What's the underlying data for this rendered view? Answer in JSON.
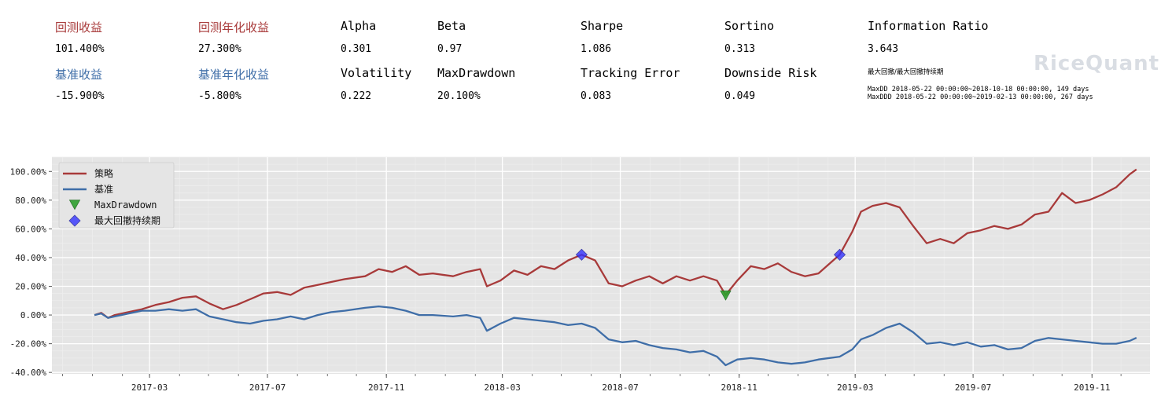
{
  "summary": {
    "row1": [
      {
        "label": "回测收益",
        "value": "101.400%",
        "color": "red"
      },
      {
        "label": "回测年化收益",
        "value": "27.300%",
        "color": "red"
      },
      {
        "label": "Alpha",
        "value": "0.301",
        "color": "black"
      },
      {
        "label": "Beta",
        "value": "0.97",
        "color": "black"
      },
      {
        "label": "Sharpe",
        "value": "1.086",
        "color": "black"
      },
      {
        "label": "Sortino",
        "value": "0.313",
        "color": "black"
      },
      {
        "label": "Information Ratio",
        "value": "3.643",
        "color": "black"
      }
    ],
    "row2": [
      {
        "label": "基准收益",
        "value": "-15.900%",
        "color": "blue"
      },
      {
        "label": "基准年化收益",
        "value": "-5.800%",
        "color": "blue"
      },
      {
        "label": "Volatility",
        "value": "0.222",
        "color": "black"
      },
      {
        "label": "MaxDrawdown",
        "value": "20.100%",
        "color": "black"
      },
      {
        "label": "Tracking Error",
        "value": "0.083",
        "color": "black"
      },
      {
        "label": "Downside Risk",
        "value": "0.049",
        "color": "black"
      }
    ],
    "max_dd_title": "最大回撤/最大回撤持续期",
    "max_dd_line1": "MaxDD  2018-05-22 00:00:00~2018-10-18 00:00:00, 149 days",
    "max_dd_line2": "MaxDDD 2018-05-22 00:00:00~2019-02-13 00:00:00, 267 days",
    "logo_text": "RiceQuant"
  },
  "colors": {
    "strategy": "#a83a3a",
    "benchmark": "#3f6ea8",
    "maxdd_marker": "#2ca02c",
    "maxddd_marker": "#3333ff",
    "plot_bg": "#e5e5e5"
  },
  "chart_data": {
    "type": "line",
    "x_ticks": [
      "2017-03",
      "2017-07",
      "2017-11",
      "2018-03",
      "2018-07",
      "2018-11",
      "2019-03",
      "2019-07",
      "2019-11"
    ],
    "x_tick_dates": [
      "2017-03-01",
      "2017-07-01",
      "2017-11-01",
      "2018-03-01",
      "2018-07-01",
      "2018-11-01",
      "2019-03-01",
      "2019-07-01",
      "2019-11-01"
    ],
    "xlim": [
      "2016-11-20",
      "2019-12-31"
    ],
    "y_ticks": [
      "100.00%",
      "80.00%",
      "60.00%",
      "40.00%",
      "20.00%",
      "0.00%",
      "-20.00%",
      "-40.00%"
    ],
    "y_tick_values": [
      100,
      80,
      60,
      40,
      20,
      0,
      -20,
      -40
    ],
    "ylim": [
      -41,
      110
    ],
    "grid": true,
    "legend_position": "top-left",
    "series": [
      {
        "name": "策略",
        "points": [
          [
            "2017-01-03",
            0
          ],
          [
            "2017-01-10",
            1.5
          ],
          [
            "2017-01-17",
            -2
          ],
          [
            "2017-01-24",
            0
          ],
          [
            "2017-02-07",
            2
          ],
          [
            "2017-02-21",
            4
          ],
          [
            "2017-03-07",
            7
          ],
          [
            "2017-03-21",
            9
          ],
          [
            "2017-04-04",
            12
          ],
          [
            "2017-04-18",
            13
          ],
          [
            "2017-05-02",
            8
          ],
          [
            "2017-05-16",
            4
          ],
          [
            "2017-05-30",
            7
          ],
          [
            "2017-06-13",
            11
          ],
          [
            "2017-06-27",
            15
          ],
          [
            "2017-07-11",
            16
          ],
          [
            "2017-07-25",
            14
          ],
          [
            "2017-08-08",
            19
          ],
          [
            "2017-08-22",
            21
          ],
          [
            "2017-09-05",
            23
          ],
          [
            "2017-09-19",
            25
          ],
          [
            "2017-10-10",
            27
          ],
          [
            "2017-10-24",
            32
          ],
          [
            "2017-11-07",
            30
          ],
          [
            "2017-11-21",
            34
          ],
          [
            "2017-12-05",
            28
          ],
          [
            "2017-12-19",
            29
          ],
          [
            "2018-01-09",
            27
          ],
          [
            "2018-01-23",
            30
          ],
          [
            "2018-02-06",
            32
          ],
          [
            "2018-02-13",
            20
          ],
          [
            "2018-02-27",
            24
          ],
          [
            "2018-03-13",
            31
          ],
          [
            "2018-03-27",
            28
          ],
          [
            "2018-04-10",
            34
          ],
          [
            "2018-04-24",
            32
          ],
          [
            "2018-05-08",
            38
          ],
          [
            "2018-05-22",
            42
          ],
          [
            "2018-06-05",
            38
          ],
          [
            "2018-06-19",
            22
          ],
          [
            "2018-07-03",
            20
          ],
          [
            "2018-07-17",
            24
          ],
          [
            "2018-07-31",
            27
          ],
          [
            "2018-08-14",
            22
          ],
          [
            "2018-08-28",
            27
          ],
          [
            "2018-09-11",
            24
          ],
          [
            "2018-09-25",
            27
          ],
          [
            "2018-10-09",
            24
          ],
          [
            "2018-10-18",
            14
          ],
          [
            "2018-10-30",
            24
          ],
          [
            "2018-11-13",
            34
          ],
          [
            "2018-11-27",
            32
          ],
          [
            "2018-12-11",
            36
          ],
          [
            "2018-12-25",
            30
          ],
          [
            "2019-01-08",
            27
          ],
          [
            "2019-01-22",
            29
          ],
          [
            "2019-02-13",
            42
          ],
          [
            "2019-02-26",
            58
          ],
          [
            "2019-03-07",
            72
          ],
          [
            "2019-03-19",
            76
          ],
          [
            "2019-04-02",
            78
          ],
          [
            "2019-04-16",
            75
          ],
          [
            "2019-04-30",
            62
          ],
          [
            "2019-05-14",
            50
          ],
          [
            "2019-05-28",
            53
          ],
          [
            "2019-06-11",
            50
          ],
          [
            "2019-06-25",
            57
          ],
          [
            "2019-07-09",
            59
          ],
          [
            "2019-07-23",
            62
          ],
          [
            "2019-08-06",
            60
          ],
          [
            "2019-08-20",
            63
          ],
          [
            "2019-09-03",
            70
          ],
          [
            "2019-09-17",
            72
          ],
          [
            "2019-10-01",
            85
          ],
          [
            "2019-10-15",
            78
          ],
          [
            "2019-10-29",
            80
          ],
          [
            "2019-11-12",
            84
          ],
          [
            "2019-11-26",
            89
          ],
          [
            "2019-12-10",
            98
          ],
          [
            "2019-12-17",
            101.4
          ]
        ]
      },
      {
        "name": "基准",
        "points": [
          [
            "2017-01-03",
            0
          ],
          [
            "2017-01-10",
            1
          ],
          [
            "2017-01-17",
            -2
          ],
          [
            "2017-01-24",
            -1
          ],
          [
            "2017-02-07",
            1
          ],
          [
            "2017-02-21",
            3
          ],
          [
            "2017-03-07",
            3
          ],
          [
            "2017-03-21",
            4
          ],
          [
            "2017-04-04",
            3
          ],
          [
            "2017-04-18",
            4
          ],
          [
            "2017-05-02",
            -1
          ],
          [
            "2017-05-16",
            -3
          ],
          [
            "2017-05-30",
            -5
          ],
          [
            "2017-06-13",
            -6
          ],
          [
            "2017-06-27",
            -4
          ],
          [
            "2017-07-11",
            -3
          ],
          [
            "2017-07-25",
            -1
          ],
          [
            "2017-08-08",
            -3
          ],
          [
            "2017-08-22",
            0
          ],
          [
            "2017-09-05",
            2
          ],
          [
            "2017-09-19",
            3
          ],
          [
            "2017-10-10",
            5
          ],
          [
            "2017-10-24",
            6
          ],
          [
            "2017-11-07",
            5
          ],
          [
            "2017-11-21",
            3
          ],
          [
            "2017-12-05",
            0
          ],
          [
            "2017-12-19",
            0
          ],
          [
            "2018-01-09",
            -1
          ],
          [
            "2018-01-23",
            0
          ],
          [
            "2018-02-06",
            -2
          ],
          [
            "2018-02-13",
            -11
          ],
          [
            "2018-02-27",
            -6
          ],
          [
            "2018-03-13",
            -2
          ],
          [
            "2018-03-27",
            -3
          ],
          [
            "2018-04-10",
            -4
          ],
          [
            "2018-04-24",
            -5
          ],
          [
            "2018-05-08",
            -7
          ],
          [
            "2018-05-22",
            -6
          ],
          [
            "2018-06-05",
            -9
          ],
          [
            "2018-06-19",
            -17
          ],
          [
            "2018-07-03",
            -19
          ],
          [
            "2018-07-17",
            -18
          ],
          [
            "2018-07-31",
            -21
          ],
          [
            "2018-08-14",
            -23
          ],
          [
            "2018-08-28",
            -24
          ],
          [
            "2018-09-11",
            -26
          ],
          [
            "2018-09-25",
            -25
          ],
          [
            "2018-10-09",
            -29
          ],
          [
            "2018-10-18",
            -35
          ],
          [
            "2018-10-30",
            -31
          ],
          [
            "2018-11-13",
            -30
          ],
          [
            "2018-11-27",
            -31
          ],
          [
            "2018-12-11",
            -33
          ],
          [
            "2018-12-25",
            -34
          ],
          [
            "2019-01-08",
            -33
          ],
          [
            "2019-01-22",
            -31
          ],
          [
            "2019-02-13",
            -29
          ],
          [
            "2019-02-26",
            -24
          ],
          [
            "2019-03-07",
            -17
          ],
          [
            "2019-03-19",
            -14
          ],
          [
            "2019-04-02",
            -9
          ],
          [
            "2019-04-16",
            -6
          ],
          [
            "2019-04-30",
            -12
          ],
          [
            "2019-05-14",
            -20
          ],
          [
            "2019-05-28",
            -19
          ],
          [
            "2019-06-11",
            -21
          ],
          [
            "2019-06-25",
            -19
          ],
          [
            "2019-07-09",
            -22
          ],
          [
            "2019-07-23",
            -21
          ],
          [
            "2019-08-06",
            -24
          ],
          [
            "2019-08-20",
            -23
          ],
          [
            "2019-09-03",
            -18
          ],
          [
            "2019-09-17",
            -16
          ],
          [
            "2019-10-01",
            -17
          ],
          [
            "2019-10-15",
            -18
          ],
          [
            "2019-10-29",
            -19
          ],
          [
            "2019-11-12",
            -20
          ],
          [
            "2019-11-26",
            -20
          ],
          [
            "2019-12-10",
            -18
          ],
          [
            "2019-12-17",
            -15.9
          ]
        ]
      }
    ],
    "markers": [
      {
        "name": "MaxDrawdown",
        "shape": "triangle-down",
        "points": [
          [
            "2018-10-18",
            14
          ]
        ]
      },
      {
        "name": "最大回撤持续期",
        "shape": "diamond",
        "points": [
          [
            "2018-05-22",
            42
          ],
          [
            "2019-02-13",
            42
          ]
        ]
      }
    ]
  }
}
